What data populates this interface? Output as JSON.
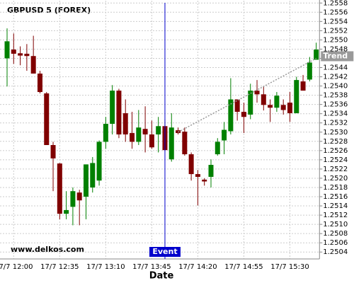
{
  "chart_data": {
    "type": "candlestick",
    "title": "GBPUSD 5 (FOREX)",
    "watermark": "www.delkos.com",
    "x_label": "Date",
    "categories": [
      null,
      "17/7 12:00",
      null,
      null,
      null,
      null,
      null,
      null,
      "17/7 12:35",
      null,
      null,
      null,
      null,
      null,
      null,
      "17/7 13:10",
      null,
      null,
      null,
      null,
      null,
      null,
      "17/7 13:45",
      null,
      null,
      null,
      null,
      null,
      null,
      "17/7 14:20",
      null,
      null,
      null,
      null,
      null,
      null,
      "17/7 14:55",
      null,
      null,
      null,
      null,
      null,
      null,
      "17/7 15:30",
      null,
      null,
      null,
      null
    ],
    "open": [
      1.2546,
      1.25479,
      1.25471,
      1.2547,
      1.25465,
      1.25427,
      1.25384,
      1.25272,
      1.25232,
      1.25123,
      1.25138,
      1.25169,
      1.2516,
      1.2518,
      1.25195,
      1.25279,
      1.25318,
      1.2539,
      1.25341,
      1.25298,
      1.25279,
      1.25307,
      1.25295,
      1.25295,
      1.25313,
      1.25241,
      1.25304,
      1.25301,
      1.25252,
      1.25209,
      1.25197,
      1.25203,
      1.25252,
      1.25282,
      1.25302,
      1.25371,
      1.25344,
      1.25338,
      1.2539,
      1.25382,
      1.25359,
      1.25353,
      1.25359,
      1.25364,
      1.25341,
      1.2541,
      1.25414,
      1.25457
    ],
    "high": [
      1.25525,
      1.25514,
      1.25486,
      1.25491,
      1.25509,
      1.25433,
      1.25387,
      1.25279,
      1.25233,
      1.25172,
      1.2518,
      1.25175,
      1.2523,
      1.25246,
      1.25282,
      1.25333,
      1.25402,
      1.25394,
      1.25371,
      1.25344,
      1.25348,
      1.25356,
      1.25325,
      1.25333,
      1.25328,
      1.25341,
      1.2531,
      1.2531,
      1.25256,
      1.25218,
      1.252,
      1.25241,
      1.25287,
      1.25322,
      1.25417,
      1.25371,
      1.25364,
      1.25405,
      1.25413,
      1.25399,
      1.25371,
      1.25387,
      1.25371,
      1.25387,
      1.2542,
      1.25424,
      1.25463,
      1.25494
    ],
    "low": [
      1.25399,
      1.25448,
      1.25445,
      1.25433,
      1.25427,
      1.25384,
      1.25272,
      1.25172,
      1.25111,
      1.25111,
      1.25098,
      1.25098,
      1.25111,
      1.25169,
      1.25184,
      1.25264,
      1.25295,
      1.25287,
      1.25279,
      1.25264,
      1.25272,
      1.25256,
      1.25264,
      1.25256,
      1.25261,
      1.25236,
      1.25295,
      1.25249,
      1.25195,
      1.25141,
      1.25184,
      1.2518,
      1.25249,
      1.25252,
      1.25295,
      1.25325,
      1.25298,
      1.25328,
      1.25364,
      1.25347,
      1.25322,
      1.25344,
      1.25338,
      1.25322,
      1.25341,
      1.2539,
      1.2541,
      1.25457
    ],
    "close": [
      1.25497,
      1.2547,
      1.25466,
      1.25465,
      1.25427,
      1.25387,
      1.25272,
      1.25243,
      1.25123,
      1.25131,
      1.25172,
      1.25152,
      1.2523,
      1.25233,
      1.25279,
      1.25318,
      1.2539,
      1.25295,
      1.25295,
      1.25279,
      1.2531,
      1.25295,
      1.25267,
      1.25313,
      1.25261,
      1.2531,
      1.25298,
      1.25252,
      1.25209,
      1.25203,
      1.25193,
      1.25229,
      1.25279,
      1.25305,
      1.25371,
      1.25344,
      1.25333,
      1.2539,
      1.25382,
      1.25359,
      1.25353,
      1.25379,
      1.25348,
      1.25341,
      1.25413,
      1.2539,
      1.25451,
      1.25479
    ],
    "up_color": "#008000",
    "down_color": "#800000",
    "ylim": [
      1.25025,
      1.25585
    ],
    "yticks": [
      1.2504,
      1.2506,
      1.2508,
      {
        "value": 1.251,
        "label": "1.2510"
      },
      1.2512,
      1.2514,
      1.2516,
      1.2518,
      {
        "value": 1.252,
        "label": "1.2520"
      },
      1.2522,
      1.2524,
      1.2526,
      1.2528,
      {
        "value": 1.253,
        "label": "1.2530"
      },
      1.2532,
      1.2534,
      1.2536,
      1.2538,
      {
        "value": 1.254,
        "label": "1.2540"
      },
      1.2542,
      1.2544,
      1.2546,
      1.2548,
      {
        "value": 1.255,
        "label": "1.2550"
      },
      1.2552,
      1.2554,
      1.2556,
      1.2558
    ],
    "grid": true,
    "event": {
      "label": "Event",
      "category_index": 24,
      "color": "#0000cc"
    },
    "trend": {
      "label": "Trend",
      "start_index": 26,
      "start_value": 1.253,
      "end_index": 47,
      "end_value": 1.2546,
      "color": "#999999"
    }
  }
}
